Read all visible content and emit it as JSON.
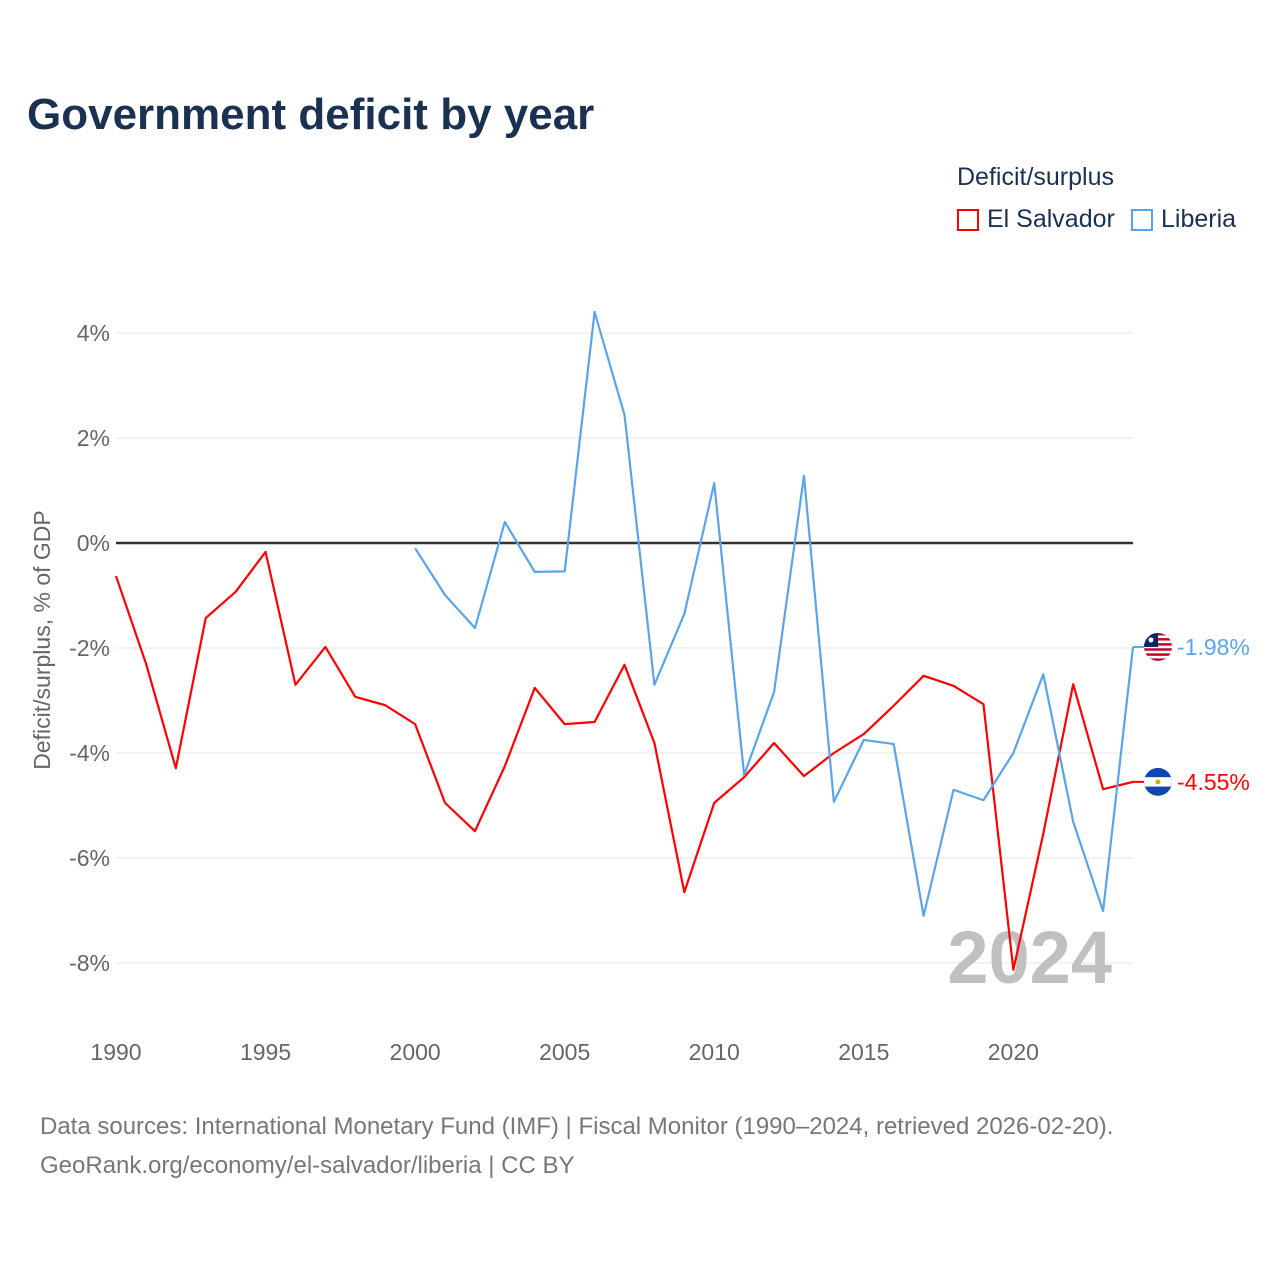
{
  "chart_data": {
    "type": "line",
    "title": "Government deficit by year",
    "ylabel": "Deficit/surplus, % of GDP",
    "xlabel": "",
    "legend_title": "Deficit/surplus",
    "legend_placement": "top-right",
    "xlim": [
      1990,
      2024
    ],
    "ylim": [
      -9,
      5
    ],
    "x_ticks": [
      1990,
      1995,
      2000,
      2005,
      2010,
      2015,
      2020
    ],
    "x_tick_labels": [
      "1990",
      "1995",
      "2000",
      "2005",
      "2010",
      "2015",
      "2020"
    ],
    "y_ticks": [
      4,
      2,
      0,
      -2,
      -4,
      -6,
      -8
    ],
    "y_tick_labels": [
      "4%",
      "2%",
      "0%",
      "-2%",
      "-4%",
      "-6%",
      "-8%"
    ],
    "year_watermark": "2024",
    "series": [
      {
        "name": "El Salvador",
        "color": "#ff0000",
        "end_label": "-4.55%",
        "x": [
          1990,
          1991,
          1992,
          1993,
          1994,
          1995,
          1996,
          1997,
          1998,
          1999,
          2000,
          2001,
          2002,
          2003,
          2004,
          2005,
          2006,
          2007,
          2008,
          2009,
          2010,
          2011,
          2012,
          2013,
          2014,
          2015,
          2016,
          2017,
          2018,
          2019,
          2020,
          2021,
          2022,
          2023,
          2024
        ],
        "values": [
          -0.63,
          -2.29,
          -4.29,
          -1.43,
          -0.93,
          -0.17,
          -2.7,
          -1.98,
          -2.93,
          -3.09,
          -3.45,
          -4.95,
          -5.49,
          -4.25,
          -2.76,
          -3.45,
          -3.41,
          -2.32,
          -3.81,
          -6.65,
          -4.95,
          -4.46,
          -3.81,
          -4.44,
          -4.0,
          -3.64,
          -3.1,
          -2.53,
          -2.72,
          -3.07,
          -8.13,
          -5.54,
          -2.69,
          -4.69,
          -4.55
        ]
      },
      {
        "name": "Liberia",
        "color": "#5aa5e8",
        "end_label": "-1.98%",
        "x": [
          2000,
          2001,
          2002,
          2003,
          2004,
          2005,
          2006,
          2007,
          2008,
          2009,
          2010,
          2011,
          2012,
          2013,
          2014,
          2015,
          2016,
          2017,
          2018,
          2019,
          2020,
          2021,
          2022,
          2023,
          2024
        ],
        "values": [
          -0.1,
          -0.99,
          -1.62,
          0.4,
          -0.55,
          -0.54,
          4.4,
          2.44,
          -2.7,
          -1.35,
          1.14,
          -4.42,
          -2.84,
          1.28,
          -4.93,
          -3.75,
          -3.83,
          -7.1,
          -4.7,
          -4.9,
          -4.0,
          -2.5,
          -5.31,
          -7.01,
          -1.98
        ]
      }
    ]
  },
  "footer": {
    "line1": "Data sources: International Monetary Fund (IMF) | Fiscal Monitor (1990–2024, retrieved 2026-02-20).",
    "line2": "GeoRank.org/economy/el-salvador/liberia | CC BY"
  }
}
